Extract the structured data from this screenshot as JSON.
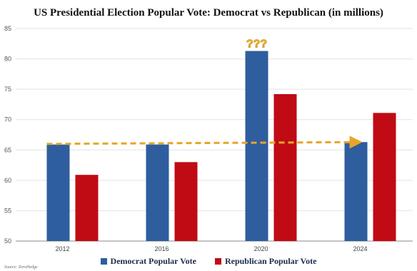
{
  "chart_data": {
    "type": "bar",
    "title": "US Presidential Election Popular Vote: Democrat vs Republican (in millions)",
    "categories": [
      "2012",
      "2016",
      "2020",
      "2024"
    ],
    "series": [
      {
        "name": "Democrat Popular Vote",
        "values": [
          65.9,
          65.9,
          81.3,
          66.3
        ],
        "color": "#2e5e9e"
      },
      {
        "name": "Republican Popular Vote",
        "values": [
          60.9,
          63.0,
          74.2,
          71.1
        ],
        "color": "#c00b14"
      }
    ],
    "ylim": [
      50,
      85
    ],
    "yticks": [
      50,
      55,
      60,
      65,
      70,
      75,
      80,
      85
    ],
    "xlabel": "",
    "ylabel": "",
    "grid": true,
    "legend": "bottom",
    "annotation": {
      "text": "???",
      "near": "2020",
      "color": "#f2c340"
    },
    "trend_arrow": {
      "from_category": "2012",
      "to_category": "2024",
      "value": 66.0,
      "color": "#e8a52a"
    },
    "source": "Source: ZeroHedge"
  }
}
